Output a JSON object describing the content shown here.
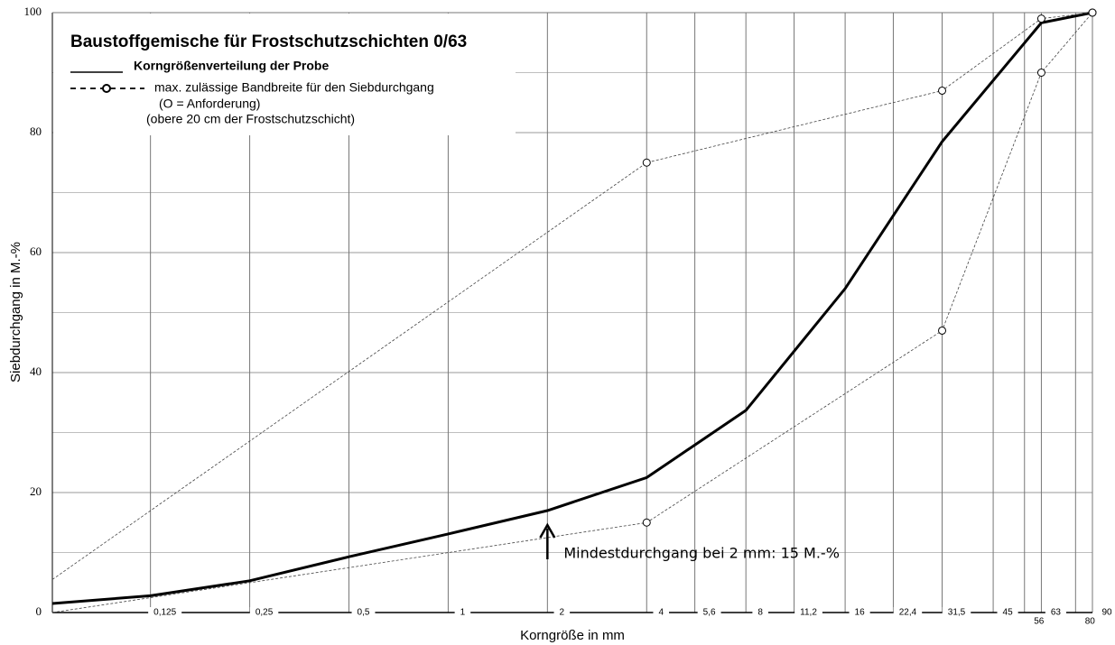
{
  "chart_data": {
    "type": "line",
    "title": "Baustoffgemische für Frostschutzschichten 0/63",
    "legend_note": "(O = Anforderung)",
    "subtitle": "(obere 20 cm der Frostschutzschicht)",
    "xlabel": "Korngröße in mm",
    "ylabel": "Siebdurchgang in M.-%",
    "annotation": "Mindestdurchgang bei 2 mm: 15 M.-%",
    "annotation_x": 2,
    "xscale": "log2",
    "xlim": [
      0.063,
      90
    ],
    "ylim": [
      0,
      100
    ],
    "yticks": [
      0,
      20,
      40,
      60,
      80,
      100
    ],
    "y_minor_ticks": [
      10,
      30,
      50,
      70,
      90
    ],
    "xticks": [
      {
        "value": 0.125,
        "label": "0,125"
      },
      {
        "value": 0.25,
        "label": "0,25"
      },
      {
        "value": 0.5,
        "label": "0,5"
      },
      1,
      2,
      4,
      {
        "value": 5.6,
        "label": "5,6"
      },
      8,
      {
        "value": 11.2,
        "label": "11,2"
      },
      16,
      {
        "value": 22.4,
        "label": "22,4"
      },
      {
        "value": 31.5,
        "label": "31,5"
      },
      45,
      56,
      63,
      80,
      90
    ],
    "grid": true,
    "series": [
      {
        "name": "Korngrößenverteilung der Probe",
        "color": "#000000",
        "style": "solid",
        "x": [
          0.063,
          0.125,
          0.25,
          0.5,
          1,
          2,
          4,
          8,
          16,
          31.5,
          63,
          90
        ],
        "values": [
          1.5,
          2.8,
          5.3,
          9.3,
          13.1,
          17,
          22.5,
          33.7,
          54,
          78.5,
          98.3,
          100
        ]
      },
      {
        "name": "max. zulässige Bandbreite für den Siebdurchgang",
        "color": "#444444",
        "style": "dashed",
        "x": [
          0.063,
          4,
          31.5,
          63,
          90
        ],
        "upper": [
          5.5,
          75,
          87,
          99,
          100
        ],
        "lower": [
          0,
          15,
          47,
          90,
          100
        ]
      }
    ]
  }
}
